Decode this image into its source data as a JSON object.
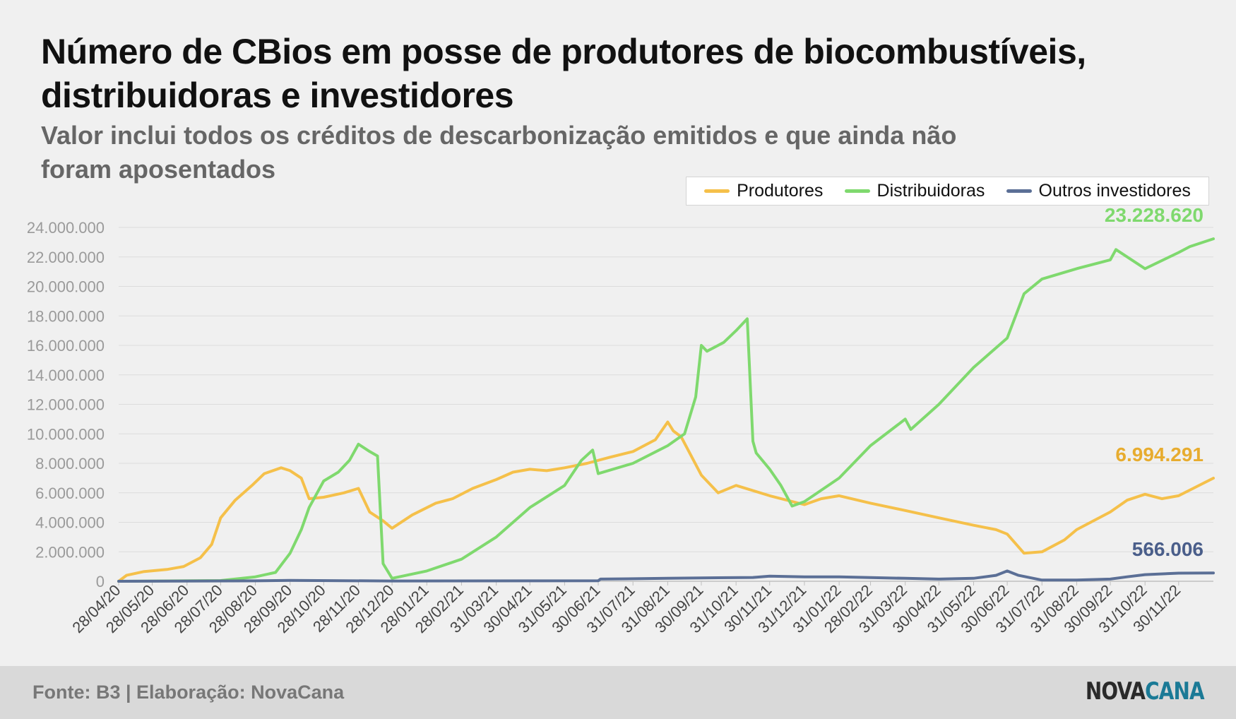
{
  "title": "Número de CBios em posse de produtores de biocombustíveis, distribuidoras e investidores",
  "subtitle": "Valor inclui todos os créditos de descarbonização emitidos e que ainda não foram aposentados",
  "footer": {
    "source": "Fonte: B3 | Elaboração: NovaCana",
    "logo_part1": "NOVA",
    "logo_part2": "CANA"
  },
  "chart_data": {
    "type": "line",
    "title": "Número de CBios em posse de produtores de biocombustíveis, distribuidoras e investidores",
    "subtitle": "Valor inclui todos os créditos de descarbonização emitidos e que ainda não foram aposentados",
    "xlabel": "",
    "ylabel": "",
    "ylim": [
      0,
      24000000
    ],
    "yticks": [
      0,
      2000000,
      4000000,
      6000000,
      8000000,
      10000000,
      12000000,
      14000000,
      16000000,
      18000000,
      20000000,
      22000000,
      24000000
    ],
    "ytick_labels": [
      "0",
      "2.000.000",
      "4.000.000",
      "6.000.000",
      "8.000.000",
      "10.000.000",
      "12.000.000",
      "14.000.000",
      "16.000.000",
      "18.000.000",
      "20.000.000",
      "22.000.000",
      "24.000.000"
    ],
    "xlim": [
      "2020-04-28",
      "2022-12-31"
    ],
    "xtick_labels": [
      "28/04/20",
      "28/05/20",
      "28/06/20",
      "28/07/20",
      "28/08/20",
      "28/09/20",
      "28/10/20",
      "28/11/20",
      "28/12/20",
      "28/01/21",
      "28/02/21",
      "31/03/21",
      "30/04/21",
      "31/05/21",
      "30/06/21",
      "31/07/21",
      "31/08/21",
      "30/09/21",
      "31/10/21",
      "30/11/21",
      "31/12/21",
      "31/01/22",
      "28/02/22",
      "31/03/22",
      "30/04/22",
      "31/05/22",
      "30/06/22",
      "31/07/22",
      "31/08/22",
      "30/09/22",
      "31/10/22",
      "30/11/22"
    ],
    "xtick_dates": [
      "2020-04-28",
      "2020-05-28",
      "2020-06-28",
      "2020-07-28",
      "2020-08-28",
      "2020-09-28",
      "2020-10-28",
      "2020-11-28",
      "2020-12-28",
      "2021-01-28",
      "2021-02-28",
      "2021-03-31",
      "2021-04-30",
      "2021-05-31",
      "2021-06-30",
      "2021-07-31",
      "2021-08-31",
      "2021-09-30",
      "2021-10-31",
      "2021-11-30",
      "2021-12-31",
      "2022-01-31",
      "2022-02-28",
      "2022-03-31",
      "2022-04-30",
      "2022-05-31",
      "2022-06-30",
      "2022-07-31",
      "2022-08-31",
      "2022-09-30",
      "2022-10-31",
      "2022-11-30"
    ],
    "grid": true,
    "legend": "top-right",
    "series": [
      {
        "name": "Produtores",
        "color": "#f5c04a",
        "end_label": "6.994.291",
        "label_color": "#e7ac2f",
        "x": [
          "2020-04-28",
          "2020-05-05",
          "2020-05-20",
          "2020-06-10",
          "2020-06-25",
          "2020-07-10",
          "2020-07-20",
          "2020-07-28",
          "2020-08-10",
          "2020-08-25",
          "2020-09-05",
          "2020-09-20",
          "2020-09-28",
          "2020-10-08",
          "2020-10-15",
          "2020-10-28",
          "2020-11-15",
          "2020-11-28",
          "2020-12-08",
          "2020-12-20",
          "2020-12-28",
          "2021-01-15",
          "2021-02-05",
          "2021-02-20",
          "2021-03-10",
          "2021-03-31",
          "2021-04-15",
          "2021-04-30",
          "2021-05-15",
          "2021-05-31",
          "2021-06-20",
          "2021-07-10",
          "2021-07-31",
          "2021-08-20",
          "2021-08-31",
          "2021-09-05",
          "2021-09-12",
          "2021-09-30",
          "2021-10-15",
          "2021-10-31",
          "2021-11-30",
          "2021-12-31",
          "2022-01-15",
          "2022-01-31",
          "2022-02-28",
          "2022-03-31",
          "2022-04-30",
          "2022-05-31",
          "2022-06-20",
          "2022-06-30",
          "2022-07-15",
          "2022-07-31",
          "2022-08-20",
          "2022-08-31",
          "2022-09-30",
          "2022-10-15",
          "2022-10-31",
          "2022-11-15",
          "2022-11-30",
          "2022-12-31"
        ],
        "values": [
          0,
          400000,
          650000,
          800000,
          1000000,
          1600000,
          2500000,
          4300000,
          5500000,
          6500000,
          7300000,
          7700000,
          7500000,
          7000000,
          5600000,
          5700000,
          6000000,
          6300000,
          4700000,
          4100000,
          3600000,
          4500000,
          5300000,
          5600000,
          6300000,
          6900000,
          7400000,
          7600000,
          7500000,
          7700000,
          8000000,
          8400000,
          8800000,
          9600000,
          10800000,
          10200000,
          9800000,
          7200000,
          6000000,
          6500000,
          5800000,
          5200000,
          5600000,
          5800000,
          5300000,
          4800000,
          4300000,
          3800000,
          3500000,
          3200000,
          1900000,
          2000000,
          2800000,
          3500000,
          4700000,
          5500000,
          5900000,
          5600000,
          5800000,
          6994291
        ]
      },
      {
        "name": "Distribuidoras",
        "color": "#7fd96e",
        "end_label": "23.228.620",
        "label_color": "#7fd96e",
        "x": [
          "2020-04-28",
          "2020-07-28",
          "2020-08-28",
          "2020-09-15",
          "2020-09-28",
          "2020-10-08",
          "2020-10-15",
          "2020-10-28",
          "2020-11-10",
          "2020-11-20",
          "2020-11-28",
          "2020-12-08",
          "2020-12-15",
          "2020-12-20",
          "2020-12-28",
          "2021-01-28",
          "2021-02-28",
          "2021-03-31",
          "2021-04-30",
          "2021-05-31",
          "2021-06-15",
          "2021-06-25",
          "2021-06-30",
          "2021-07-31",
          "2021-08-31",
          "2021-09-15",
          "2021-09-25",
          "2021-09-30",
          "2021-10-05",
          "2021-10-20",
          "2021-10-31",
          "2021-11-10",
          "2021-11-15",
          "2021-11-18",
          "2021-11-30",
          "2021-12-10",
          "2021-12-20",
          "2021-12-31",
          "2022-01-31",
          "2022-02-28",
          "2022-03-31",
          "2022-04-05",
          "2022-04-30",
          "2022-05-31",
          "2022-06-30",
          "2022-07-15",
          "2022-07-31",
          "2022-08-31",
          "2022-09-30",
          "2022-10-05",
          "2022-10-31",
          "2022-11-30",
          "2022-12-10",
          "2022-12-31"
        ],
        "values": [
          0,
          50000,
          300000,
          600000,
          1900000,
          3500000,
          5000000,
          6800000,
          7400000,
          8200000,
          9300000,
          8800000,
          8500000,
          1200000,
          200000,
          700000,
          1500000,
          3000000,
          5000000,
          6500000,
          8200000,
          8900000,
          7300000,
          8000000,
          9200000,
          10000000,
          12500000,
          16000000,
          15600000,
          16200000,
          17000000,
          17800000,
          9500000,
          8700000,
          7600000,
          6500000,
          5100000,
          5400000,
          7000000,
          9200000,
          11000000,
          10300000,
          12000000,
          14500000,
          16500000,
          19500000,
          20500000,
          21200000,
          21800000,
          22500000,
          21200000,
          22300000,
          22700000,
          23228620
        ]
      },
      {
        "name": "Outros investidores",
        "color": "#5b6f96",
        "end_label": "566.006",
        "label_color": "#4a5e8a",
        "x": [
          "2020-04-28",
          "2020-08-28",
          "2020-09-28",
          "2020-12-28",
          "2021-04-30",
          "2021-06-30",
          "2021-07-02",
          "2021-08-31",
          "2021-09-30",
          "2021-11-15",
          "2021-11-30",
          "2021-12-31",
          "2022-01-31",
          "2022-02-28",
          "2022-03-31",
          "2022-04-30",
          "2022-05-31",
          "2022-06-20",
          "2022-06-30",
          "2022-07-10",
          "2022-07-31",
          "2022-08-31",
          "2022-09-30",
          "2022-10-15",
          "2022-10-31",
          "2022-11-30",
          "2022-12-31"
        ],
        "values": [
          0,
          30000,
          60000,
          20000,
          30000,
          40000,
          150000,
          200000,
          230000,
          260000,
          350000,
          300000,
          300000,
          250000,
          200000,
          150000,
          200000,
          400000,
          700000,
          400000,
          80000,
          80000,
          150000,
          300000,
          450000,
          550000,
          566006
        ]
      }
    ]
  }
}
